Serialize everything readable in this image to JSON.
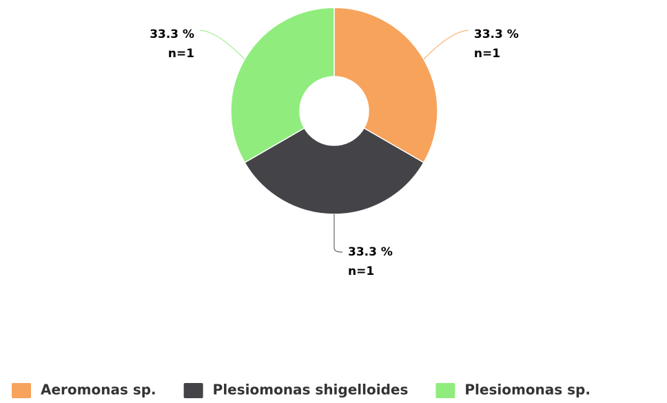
{
  "chart_data": {
    "type": "pie",
    "categories": [
      "Aeromonas sp.",
      "Plesiomonas shigelloides",
      "Plesiomonas sp."
    ],
    "values": [
      33.3,
      33.3,
      33.3
    ],
    "value_labels": [
      "33.3 %",
      "33.3 %",
      "33.3 %"
    ],
    "count_labels": [
      "n=1",
      "n=1",
      "n=1"
    ],
    "colors": [
      "#f7a35c",
      "#434348",
      "#90ed7d"
    ],
    "donut": true,
    "legend": "bottom"
  }
}
